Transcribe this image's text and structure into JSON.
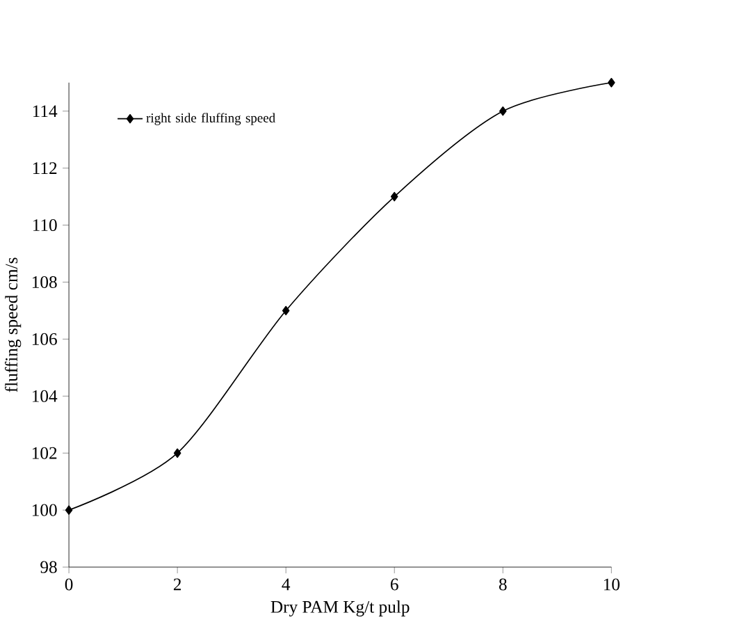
{
  "chart_data": {
    "type": "line",
    "xlabel": "Dry PAM Kg/t pulp",
    "ylabel": "fluffing speed cm/s",
    "x": [
      0,
      2,
      4,
      6,
      8,
      10
    ],
    "series": [
      {
        "name": "right side fluffing speed",
        "color": "#000000",
        "values": [
          100,
          102,
          107,
          111,
          114,
          115
        ]
      }
    ],
    "xlim": [
      0,
      10
    ],
    "xticks": [
      0,
      2,
      4,
      6,
      8,
      10
    ],
    "ylim": [
      98,
      115
    ],
    "yticks": [
      98,
      100,
      102,
      104,
      106,
      108,
      110,
      112,
      114
    ],
    "marker": "diamond",
    "line_style": "solid",
    "grid": false,
    "legend": "top left"
  }
}
